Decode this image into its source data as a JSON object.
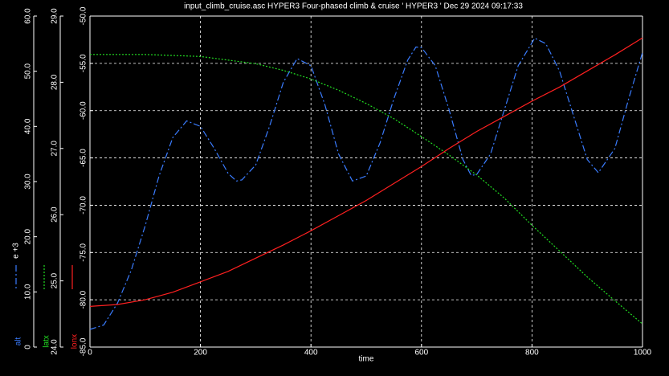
{
  "chart_data": {
    "type": "line",
    "title": "input_climb_cruise.asc HYPER3 Four-phased climb & cruise ' HYPER3 ' Dec 29 2024 09:17:33",
    "x_label": "time",
    "xlim": [
      0,
      1000
    ],
    "xticks": [
      0,
      200,
      400,
      600,
      800,
      1000
    ],
    "grid": true,
    "ylim": [
      -85,
      -50
    ],
    "yticks": [
      {
        "value": -85,
        "label": "-85.0"
      },
      {
        "value": -80,
        "label": "-80.0"
      },
      {
        "value": -75,
        "label": "-75.0"
      },
      {
        "value": -70,
        "label": "-70.0"
      },
      {
        "value": -65,
        "label": "-65.0"
      },
      {
        "value": -60,
        "label": "-60.0"
      },
      {
        "value": -55,
        "label": "-55.0"
      },
      {
        "value": -50,
        "label": "-50.0"
      }
    ],
    "y2lim": [
      24,
      29
    ],
    "y2ticks": [
      {
        "value": 24,
        "label": "24.0"
      },
      {
        "value": 25,
        "label": "25.0"
      },
      {
        "value": 26,
        "label": "26.0"
      },
      {
        "value": 27,
        "label": "27.0"
      },
      {
        "value": 28,
        "label": "28.0"
      },
      {
        "value": 29,
        "label": "29.0"
      }
    ],
    "y3lim": [
      0,
      60
    ],
    "y3ticks": [
      0,
      {
        "value": 10,
        "label": "10.0"
      },
      {
        "value": 20,
        "label": "20.0"
      },
      {
        "value": 30,
        "label": "30.0"
      },
      {
        "value": 40,
        "label": "40.0"
      },
      {
        "value": 50,
        "label": "50.0"
      },
      {
        "value": 60,
        "label": "60.0"
      }
    ],
    "y3_multiplier_label": "e +3",
    "series": [
      {
        "name": "alt",
        "color": "#3a7cff",
        "axis": "y3",
        "style": "dashdot",
        "x": [
          0,
          25,
          50,
          75,
          100,
          125,
          150,
          175,
          200,
          225,
          250,
          265,
          275,
          300,
          325,
          350,
          375,
          400,
          425,
          450,
          475,
          500,
          525,
          550,
          575,
          590,
          600,
          625,
          650,
          675,
          690,
          700,
          725,
          750,
          775,
          805,
          825,
          850,
          875,
          900,
          920,
          950,
          975,
          1000
        ],
        "values": [
          3.2,
          4,
          8,
          14,
          22,
          31,
          38,
          41,
          40,
          36,
          31.5,
          30.1,
          30.3,
          33,
          40,
          48,
          52.3,
          51,
          44,
          35,
          30.1,
          31,
          37,
          45,
          52,
          54.4,
          54.3,
          51,
          43,
          34,
          31.1,
          31.3,
          35,
          43,
          51,
          56,
          55,
          50,
          42,
          34,
          31.6,
          36,
          45,
          53.4
        ]
      },
      {
        "name": "latx",
        "color": "#22dd22",
        "axis": "y2",
        "style": "dotted",
        "x": [
          0,
          100,
          200,
          300,
          350,
          400,
          450,
          500,
          550,
          600,
          650,
          700,
          750,
          800,
          850,
          900,
          950,
          1000
        ],
        "values": [
          28.42,
          28.42,
          28.39,
          28.28,
          28.18,
          28.05,
          27.88,
          27.68,
          27.45,
          27.18,
          26.9,
          26.6,
          26.25,
          25.84,
          25.45,
          25.06,
          24.7,
          24.35
        ]
      },
      {
        "name": "lonx",
        "color": "#ff2020",
        "axis": "y",
        "style": "solid",
        "x": [
          0,
          50,
          100,
          150,
          200,
          250,
          300,
          350,
          400,
          450,
          500,
          550,
          600,
          650,
          700,
          750,
          800,
          850,
          900,
          950,
          1000
        ],
        "values": [
          -80.7,
          -80.5,
          -80.0,
          -79.2,
          -78.1,
          -77.0,
          -75.6,
          -74.2,
          -72.7,
          -71.1,
          -69.5,
          -67.7,
          -65.9,
          -64.0,
          -62.2,
          -60.6,
          -59.0,
          -57.5,
          -55.8,
          -54.1,
          -52.3
        ]
      }
    ]
  }
}
